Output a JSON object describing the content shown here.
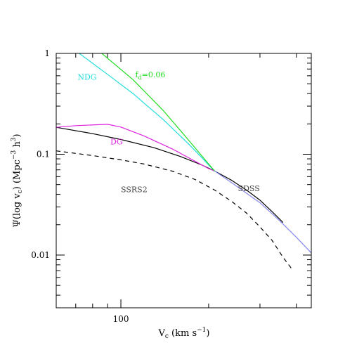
{
  "chart_data": {
    "type": "line",
    "xscale": "log",
    "yscale": "log",
    "xlim": [
      60,
      450
    ],
    "ylim": [
      0.003,
      1
    ],
    "x_ticks": [
      {
        "value": 100,
        "label": "100"
      }
    ],
    "y_ticks": [
      {
        "value": 1,
        "label": "1"
      },
      {
        "value": 0.1,
        "label": "0.1"
      },
      {
        "value": 0.01,
        "label": "0.01"
      }
    ],
    "xlabel": {
      "main": "V",
      "sub": "c",
      "rest": " (km s",
      "sup": "−1",
      "end": ")"
    },
    "ylabel": {
      "main": "Ψ(log v",
      "sub": "c",
      "rest": ") (Mpc",
      "sup": "−3",
      "rest2": " h",
      "sup2": "3",
      "end": ")"
    },
    "grid": false,
    "series": [
      {
        "id": "sdss",
        "style": "solid",
        "color": "#000000",
        "x": [
          60,
          80,
          100,
          130,
          160,
          190,
          210,
          240,
          270,
          300,
          330,
          360
        ],
        "y": [
          0.185,
          0.16,
          0.14,
          0.116,
          0.095,
          0.078,
          0.068,
          0.055,
          0.044,
          0.035,
          0.027,
          0.021
        ]
      },
      {
        "id": "ssrs2",
        "style": "dashed",
        "color": "#000000",
        "x": [
          60,
          80,
          100,
          120,
          150,
          180,
          210,
          240,
          270,
          300,
          330,
          360,
          390
        ],
        "y": [
          0.108,
          0.097,
          0.088,
          0.08,
          0.068,
          0.056,
          0.044,
          0.034,
          0.026,
          0.019,
          0.014,
          0.0095,
          0.007
        ]
      },
      {
        "id": "dg",
        "name": "DG",
        "style": "solid",
        "color": "#dd22dd",
        "x": [
          60,
          70,
          90,
          100,
          120,
          150,
          180,
          200,
          210
        ],
        "y": [
          0.185,
          0.192,
          0.198,
          0.186,
          0.152,
          0.113,
          0.085,
          0.072,
          0.068
        ]
      },
      {
        "id": "ndg",
        "name": "NDG",
        "style": "solid",
        "color": "#22dddd",
        "x": [
          72,
          90,
          110,
          140,
          170,
          190,
          200,
          210
        ],
        "y": [
          1.0,
          0.62,
          0.4,
          0.22,
          0.128,
          0.092,
          0.078,
          0.068
        ]
      },
      {
        "id": "fd006",
        "name": "f_d=0.06",
        "style": "solid",
        "color": "#22dd22",
        "x": [
          86,
          110,
          140,
          170,
          200,
          210
        ],
        "y": [
          1.0,
          0.55,
          0.27,
          0.14,
          0.08,
          0.068
        ]
      },
      {
        "id": "high-end",
        "style": "solid",
        "color": "#8888ee",
        "x": [
          210,
          250,
          300,
          350,
          400,
          450
        ],
        "y": [
          0.068,
          0.048,
          0.033,
          0.022,
          0.015,
          0.0105
        ]
      }
    ],
    "annotations": [
      {
        "id": "label-ndg",
        "text": "NDG",
        "x": 71,
        "y": 0.55,
        "color": "#22dddd"
      },
      {
        "id": "label-fd",
        "text": "f",
        "sub": "d",
        "rest": "=0.06",
        "x": 112,
        "y": 0.58,
        "color": "#22dd22"
      },
      {
        "id": "label-dg",
        "text": "DG",
        "x": 92,
        "y": 0.125,
        "color": "#dd22dd"
      },
      {
        "id": "label-ssrs2",
        "text": "SSRS2",
        "x": 100,
        "y": 0.042,
        "color": "#444444"
      },
      {
        "id": "label-sdss",
        "text": "SDSS",
        "x": 252,
        "y": 0.043,
        "color": "#444444"
      }
    ]
  }
}
